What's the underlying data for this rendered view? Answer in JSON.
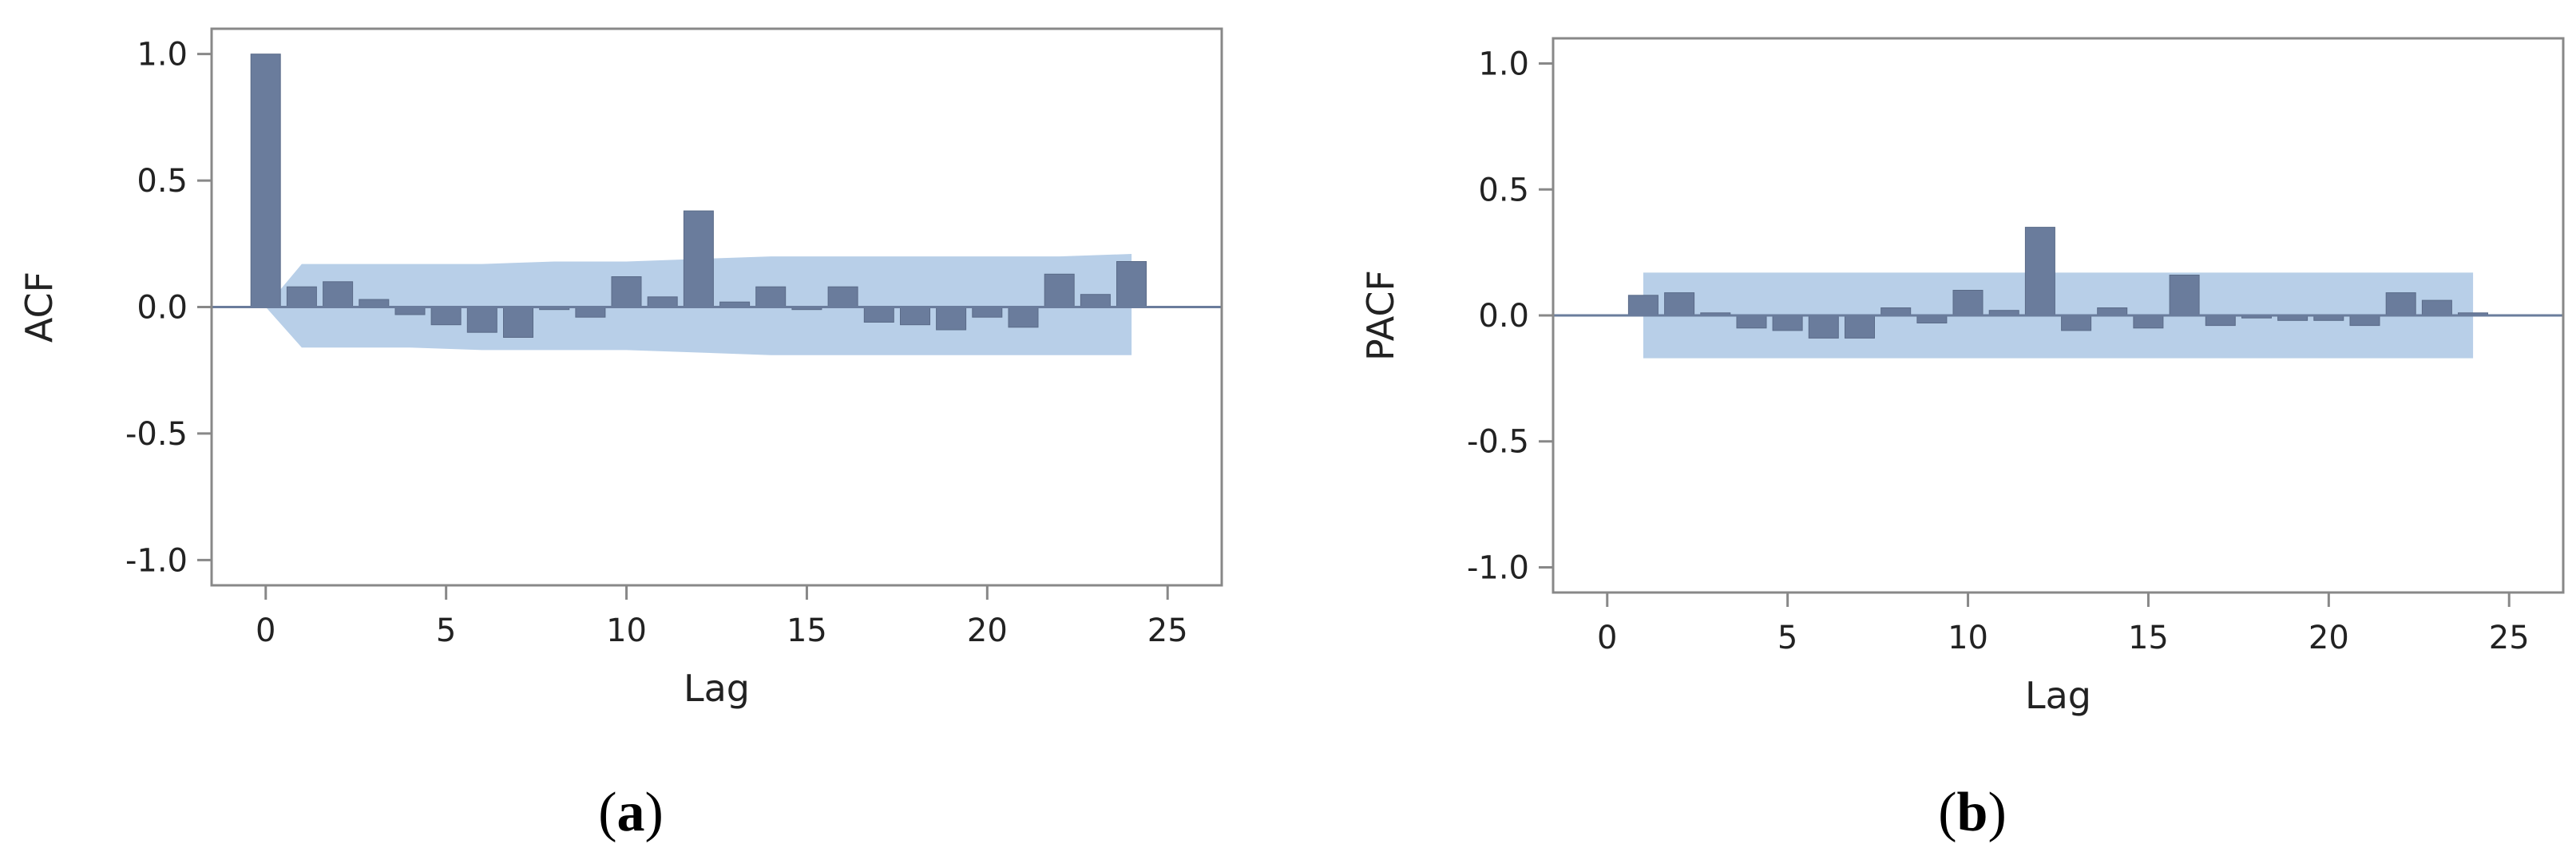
{
  "chart_data": [
    {
      "type": "bar",
      "panel": "(a)",
      "panel_letter": "a",
      "xlabel": "Lag",
      "ylabel": "ACF",
      "xlim": [
        -1.5,
        26.5
      ],
      "ylim": [
        -1.1,
        1.1
      ],
      "xticks": [
        "0",
        "5",
        "10",
        "15",
        "20",
        "25"
      ],
      "yticks": [
        "1.0",
        "0.5",
        "0.0",
        "-0.5",
        "-1.0"
      ],
      "lags": [
        0,
        1,
        2,
        3,
        4,
        5,
        6,
        7,
        8,
        9,
        10,
        11,
        12,
        13,
        14,
        15,
        16,
        17,
        18,
        19,
        20,
        21,
        22,
        23,
        24
      ],
      "values": [
        1.0,
        0.08,
        0.1,
        0.03,
        -0.03,
        -0.07,
        -0.1,
        -0.12,
        -0.01,
        -0.04,
        0.12,
        0.04,
        0.38,
        0.02,
        0.08,
        -0.01,
        0.08,
        -0.06,
        -0.07,
        -0.09,
        -0.04,
        -0.08,
        0.13,
        0.05,
        0.18
      ],
      "confidence_band": {
        "lags": [
          0,
          1,
          2,
          4,
          6,
          8,
          10,
          12,
          14,
          16,
          18,
          20,
          22,
          24
        ],
        "upper": [
          0.0,
          0.17,
          0.17,
          0.17,
          0.17,
          0.18,
          0.18,
          0.19,
          0.2,
          0.2,
          0.2,
          0.2,
          0.2,
          0.21
        ],
        "lower": [
          0.0,
          -0.16,
          -0.16,
          -0.16,
          -0.17,
          -0.17,
          -0.17,
          -0.18,
          -0.19,
          -0.19,
          -0.19,
          -0.19,
          -0.19,
          -0.19
        ]
      }
    },
    {
      "type": "bar",
      "panel": "(b)",
      "panel_letter": "b",
      "xlabel": "Lag",
      "ylabel": "PACF",
      "xlim": [
        -1.5,
        26.5
      ],
      "ylim": [
        -1.1,
        1.1
      ],
      "xticks": [
        "0",
        "5",
        "10",
        "15",
        "20",
        "25"
      ],
      "yticks": [
        "1.0",
        "0.5",
        "0.0",
        "-0.5",
        "-1.0"
      ],
      "lags": [
        1,
        2,
        3,
        4,
        5,
        6,
        7,
        8,
        9,
        10,
        11,
        12,
        13,
        14,
        15,
        16,
        17,
        18,
        19,
        20,
        21,
        22,
        23,
        24
      ],
      "values": [
        0.08,
        0.09,
        0.01,
        -0.05,
        -0.06,
        -0.09,
        -0.09,
        0.03,
        -0.03,
        0.1,
        0.02,
        0.35,
        -0.06,
        0.03,
        -0.05,
        0.16,
        -0.04,
        -0.01,
        -0.02,
        -0.02,
        -0.04,
        0.09,
        0.06,
        0.01
      ],
      "confidence_band": {
        "lags": [
          1,
          24
        ],
        "upper": [
          0.17,
          0.17
        ],
        "lower": [
          -0.17,
          -0.17
        ]
      }
    }
  ],
  "colors": {
    "bar": "#6a7c9c",
    "bar_edge": "#5a6b88",
    "band": "#b8cfe8",
    "axis": "#888888",
    "zero_line": "#6a7c9c"
  }
}
